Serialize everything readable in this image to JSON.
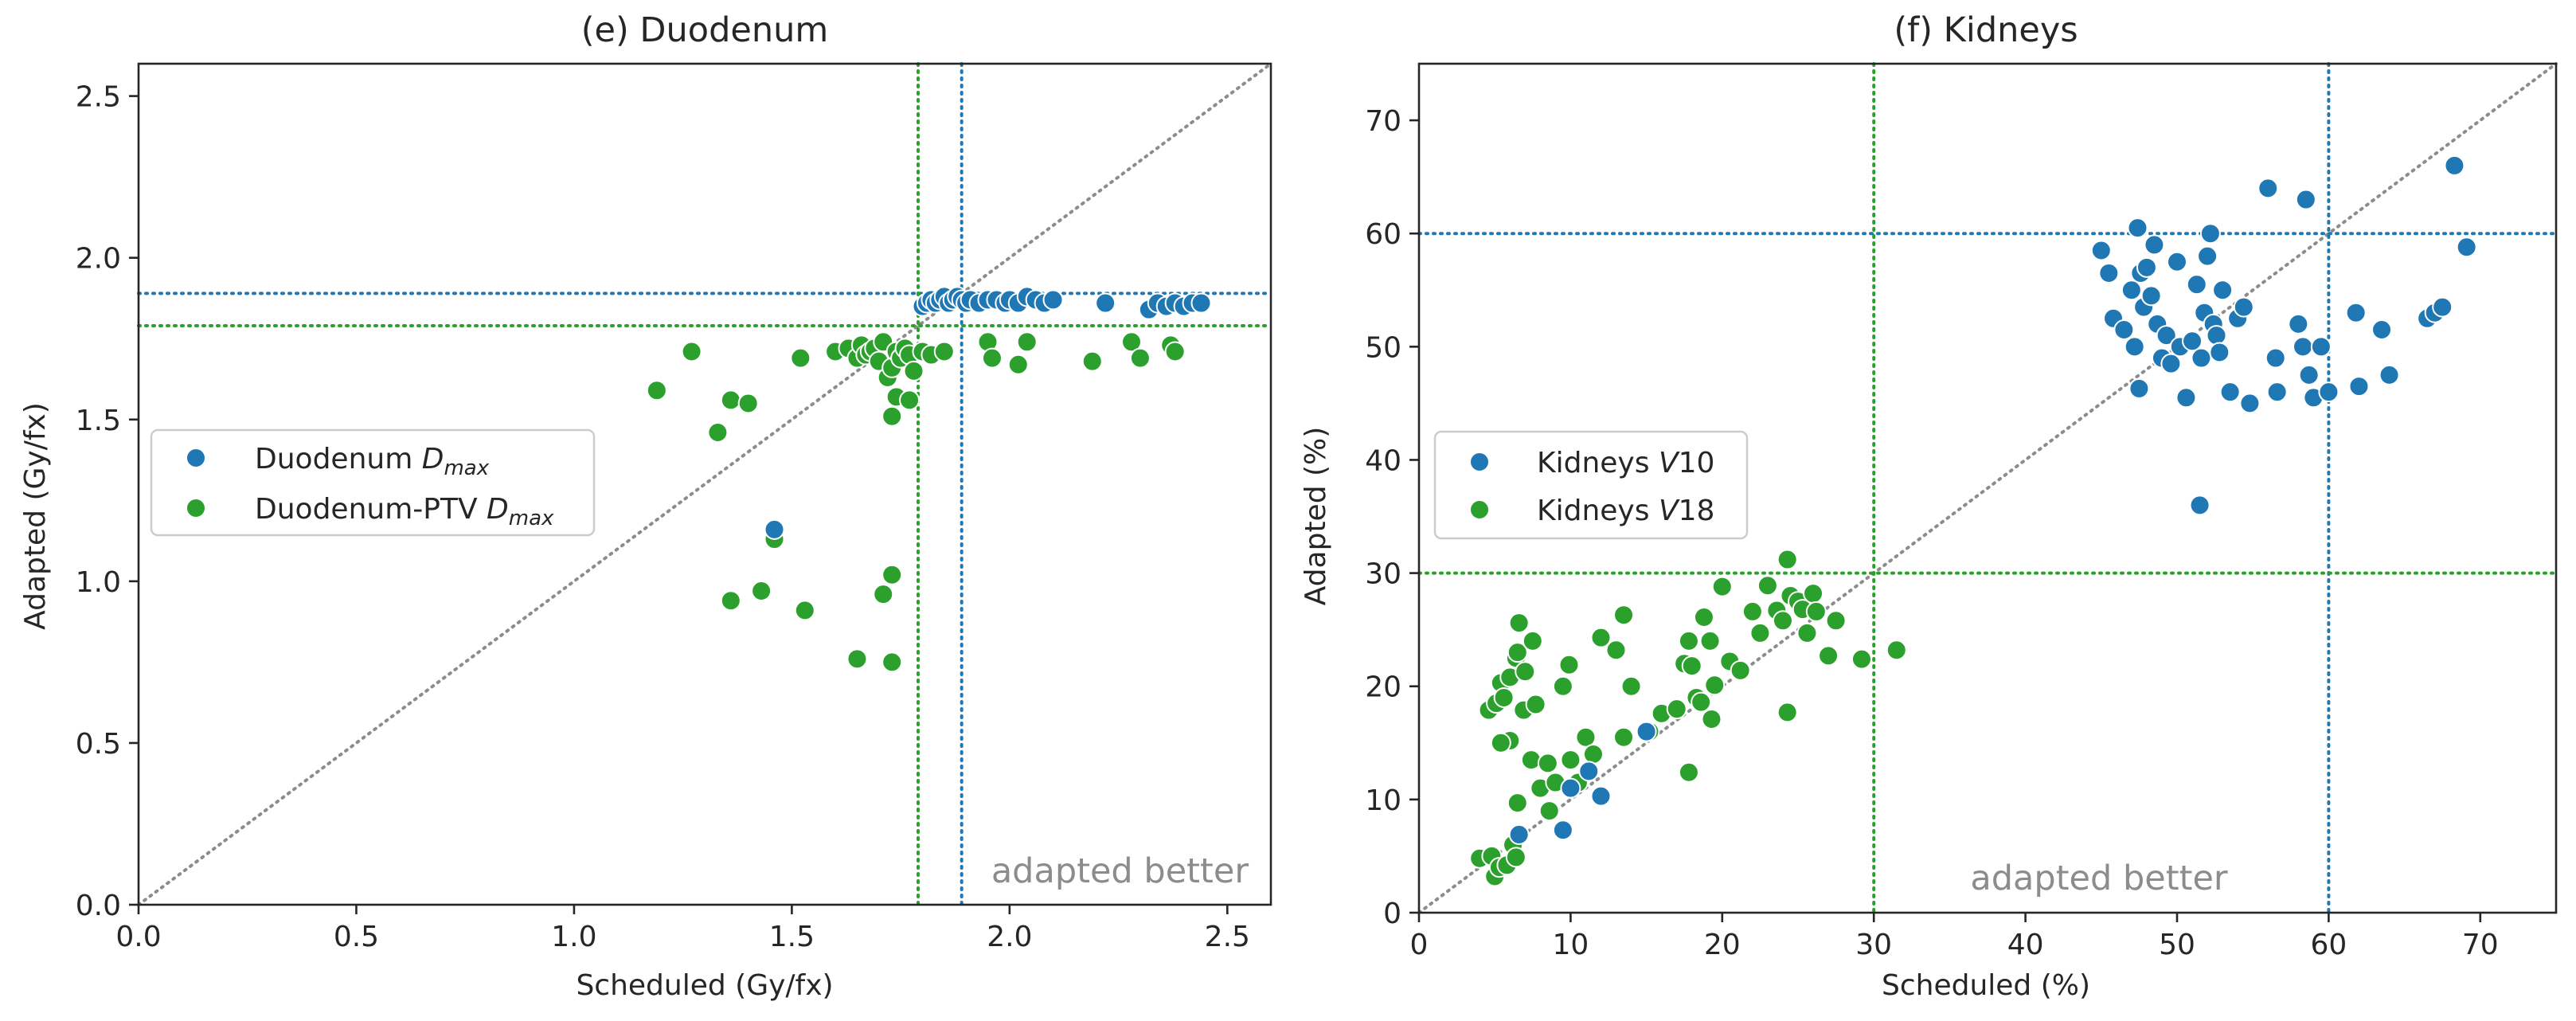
{
  "colors": {
    "blue": "#1f77b4",
    "green": "#2ca02c",
    "diag": "#8c8c8c",
    "annotation": "#8c8c8c"
  },
  "chart_data": [
    {
      "id": "duodenum",
      "type": "scatter",
      "title": "(e) Duodenum",
      "xlabel": "Scheduled (Gy/fx)",
      "ylabel": "Adapted (Gy/fx)",
      "xlim": [
        0,
        2.6
      ],
      "ylim": [
        0,
        2.6
      ],
      "xticks": [
        0.0,
        0.5,
        1.0,
        1.5,
        2.0,
        2.5
      ],
      "yticks": [
        0.0,
        0.5,
        1.0,
        1.5,
        2.0,
        2.5
      ],
      "xtick_labels": [
        "0.0",
        "0.5",
        "1.0",
        "1.5",
        "2.0",
        "2.5"
      ],
      "ytick_labels": [
        "0.0",
        "0.5",
        "1.0",
        "1.5",
        "2.0",
        "2.5"
      ],
      "annotation": "adapted better",
      "legend_position": "center-left",
      "diagonal": true,
      "series": [
        {
          "name": "Duodenum Dmax",
          "legend_base": "Duodenum ",
          "legend_symbol": "D",
          "legend_sub": "max",
          "color": "blue",
          "threshold": 1.89,
          "points": [
            [
              1.8,
              1.85
            ],
            [
              1.81,
              1.86
            ],
            [
              1.82,
              1.87
            ],
            [
              1.83,
              1.86
            ],
            [
              1.84,
              1.87
            ],
            [
              1.85,
              1.88
            ],
            [
              1.86,
              1.86
            ],
            [
              1.87,
              1.87
            ],
            [
              1.88,
              1.88
            ],
            [
              1.89,
              1.87
            ],
            [
              1.9,
              1.86
            ],
            [
              1.91,
              1.87
            ],
            [
              1.93,
              1.86
            ],
            [
              1.95,
              1.87
            ],
            [
              1.97,
              1.87
            ],
            [
              1.99,
              1.86
            ],
            [
              2.0,
              1.87
            ],
            [
              2.02,
              1.86
            ],
            [
              2.04,
              1.88
            ],
            [
              2.06,
              1.87
            ],
            [
              2.08,
              1.86
            ],
            [
              2.1,
              1.87
            ],
            [
              2.22,
              1.86
            ],
            [
              2.32,
              1.84
            ],
            [
              2.34,
              1.86
            ],
            [
              2.36,
              1.85
            ],
            [
              2.38,
              1.86
            ],
            [
              2.4,
              1.85
            ],
            [
              2.42,
              1.86
            ],
            [
              2.44,
              1.86
            ],
            [
              1.46,
              1.16
            ]
          ]
        },
        {
          "name": "Duodenum-PTV Dmax",
          "legend_base": "Duodenum-PTV ",
          "legend_symbol": "D",
          "legend_sub": "max",
          "color": "green",
          "threshold": 1.79,
          "points": [
            [
              1.19,
              1.59
            ],
            [
              1.27,
              1.71
            ],
            [
              1.33,
              1.46
            ],
            [
              1.36,
              1.56
            ],
            [
              1.4,
              1.55
            ],
            [
              1.52,
              1.69
            ],
            [
              1.6,
              1.71
            ],
            [
              1.63,
              1.72
            ],
            [
              1.65,
              1.69
            ],
            [
              1.66,
              1.73
            ],
            [
              1.67,
              1.7
            ],
            [
              1.68,
              1.71
            ],
            [
              1.69,
              1.72
            ],
            [
              1.7,
              1.68
            ],
            [
              1.71,
              1.74
            ],
            [
              1.72,
              1.63
            ],
            [
              1.73,
              1.66
            ],
            [
              1.74,
              1.71
            ],
            [
              1.75,
              1.69
            ],
            [
              1.76,
              1.72
            ],
            [
              1.77,
              1.7
            ],
            [
              1.78,
              1.65
            ],
            [
              1.74,
              1.57
            ],
            [
              1.77,
              1.56
            ],
            [
              1.73,
              1.51
            ],
            [
              1.8,
              1.71
            ],
            [
              1.82,
              1.7
            ],
            [
              1.85,
              1.71
            ],
            [
              1.95,
              1.74
            ],
            [
              1.96,
              1.69
            ],
            [
              2.02,
              1.67
            ],
            [
              2.04,
              1.74
            ],
            [
              2.19,
              1.68
            ],
            [
              2.28,
              1.74
            ],
            [
              2.3,
              1.69
            ],
            [
              2.37,
              1.73
            ],
            [
              2.38,
              1.71
            ],
            [
              1.46,
              1.13
            ],
            [
              1.36,
              0.94
            ],
            [
              1.43,
              0.97
            ],
            [
              1.53,
              0.91
            ],
            [
              1.71,
              0.96
            ],
            [
              1.73,
              1.02
            ],
            [
              1.65,
              0.76
            ],
            [
              1.73,
              0.75
            ]
          ]
        }
      ]
    },
    {
      "id": "kidneys",
      "type": "scatter",
      "title": "(f) Kidneys",
      "xlabel": "Scheduled (%)",
      "ylabel": "Adapted (%)",
      "xlim": [
        0,
        75
      ],
      "ylim": [
        0,
        75
      ],
      "xticks": [
        0,
        10,
        20,
        30,
        40,
        50,
        60,
        70
      ],
      "yticks": [
        0,
        10,
        20,
        30,
        40,
        50,
        60,
        70
      ],
      "xtick_labels": [
        "0",
        "10",
        "20",
        "30",
        "40",
        "50",
        "60",
        "70"
      ],
      "ytick_labels": [
        "0",
        "10",
        "20",
        "30",
        "40",
        "50",
        "60",
        "70"
      ],
      "annotation": "adapted better",
      "legend_position": "center-left",
      "diagonal": true,
      "series": [
        {
          "name": "Kidneys V10",
          "legend_base": "Kidneys ",
          "legend_symbol": "V",
          "legend_sub": "10",
          "color": "blue",
          "threshold": 60,
          "points": [
            [
              45.0,
              58.5
            ],
            [
              45.5,
              56.5
            ],
            [
              45.8,
              52.5
            ],
            [
              46.5,
              51.5
            ],
            [
              47.0,
              55.0
            ],
            [
              47.4,
              60.5
            ],
            [
              47.6,
              56.5
            ],
            [
              47.8,
              53.5
            ],
            [
              48.0,
              57.0
            ],
            [
              48.3,
              54.5
            ],
            [
              48.5,
              59.0
            ],
            [
              48.7,
              52.0
            ],
            [
              49.0,
              49.0
            ],
            [
              49.3,
              51.0
            ],
            [
              49.6,
              48.5
            ],
            [
              50.0,
              57.5
            ],
            [
              50.2,
              50.0
            ],
            [
              50.6,
              45.5
            ],
            [
              51.0,
              50.5
            ],
            [
              51.3,
              55.5
            ],
            [
              51.6,
              49.0
            ],
            [
              51.8,
              53.0
            ],
            [
              52.0,
              58.0
            ],
            [
              52.2,
              60.0
            ],
            [
              52.4,
              52.0
            ],
            [
              52.6,
              51.0
            ],
            [
              52.8,
              49.5
            ],
            [
              53.0,
              55.0
            ],
            [
              53.5,
              46.0
            ],
            [
              54.0,
              52.5
            ],
            [
              54.4,
              53.5
            ],
            [
              54.8,
              45.0
            ],
            [
              56.0,
              64.0
            ],
            [
              56.5,
              49.0
            ],
            [
              56.6,
              46.0
            ],
            [
              58.0,
              52.0
            ],
            [
              58.3,
              50.0
            ],
            [
              58.5,
              63.0
            ],
            [
              58.7,
              47.5
            ],
            [
              59.0,
              45.5
            ],
            [
              59.5,
              50.0
            ],
            [
              60.0,
              46.0
            ],
            [
              61.8,
              53.0
            ],
            [
              62.0,
              46.5
            ],
            [
              63.5,
              51.5
            ],
            [
              64.0,
              47.5
            ],
            [
              66.5,
              52.5
            ],
            [
              67.0,
              53.0
            ],
            [
              67.5,
              53.5
            ],
            [
              68.3,
              66.0
            ],
            [
              69.1,
              58.8
            ],
            [
              47.2,
              50.0
            ],
            [
              51.5,
              36.0
            ],
            [
              47.5,
              46.3
            ],
            [
              12.0,
              10.3
            ],
            [
              11.2,
              12.5
            ],
            [
              15.0,
              16.0
            ],
            [
              10.0,
              11.0
            ],
            [
              9.5,
              7.3
            ],
            [
              6.6,
              6.9
            ]
          ]
        },
        {
          "name": "Kidneys V18",
          "legend_base": "Kidneys ",
          "legend_symbol": "V",
          "legend_sub": "18",
          "color": "green",
          "threshold": 30,
          "points": [
            [
              4.0,
              4.8
            ],
            [
              4.8,
              5.0
            ],
            [
              5.0,
              3.2
            ],
            [
              5.3,
              4.0
            ],
            [
              5.8,
              4.2
            ],
            [
              6.2,
              6.0
            ],
            [
              6.4,
              4.9
            ],
            [
              4.6,
              17.9
            ],
            [
              5.1,
              18.5
            ],
            [
              5.4,
              20.3
            ],
            [
              5.6,
              19.0
            ],
            [
              6.0,
              20.8
            ],
            [
              6.4,
              22.5
            ],
            [
              6.5,
              23.0
            ],
            [
              6.6,
              25.6
            ],
            [
              6.9,
              17.9
            ],
            [
              7.0,
              21.3
            ],
            [
              7.4,
              13.5
            ],
            [
              7.5,
              24.0
            ],
            [
              7.7,
              18.4
            ],
            [
              6.0,
              15.2
            ],
            [
              5.4,
              15.0
            ],
            [
              6.5,
              9.7
            ],
            [
              8.0,
              11.0
            ],
            [
              8.5,
              13.2
            ],
            [
              8.6,
              9.0
            ],
            [
              9.0,
              11.5
            ],
            [
              9.5,
              20.0
            ],
            [
              9.9,
              21.9
            ],
            [
              10.0,
              13.5
            ],
            [
              10.5,
              11.5
            ],
            [
              11.0,
              15.5
            ],
            [
              11.5,
              14.0
            ],
            [
              12.0,
              24.3
            ],
            [
              13.0,
              23.2
            ],
            [
              13.5,
              26.3
            ],
            [
              14.0,
              20.0
            ],
            [
              13.5,
              15.5
            ],
            [
              15.2,
              16.0
            ],
            [
              16.0,
              17.6
            ],
            [
              17.0,
              18.0
            ],
            [
              17.5,
              22.0
            ],
            [
              17.8,
              24.0
            ],
            [
              17.8,
              12.4
            ],
            [
              18.0,
              21.8
            ],
            [
              18.3,
              19.0
            ],
            [
              18.6,
              18.6
            ],
            [
              18.8,
              26.1
            ],
            [
              19.2,
              24.0
            ],
            [
              19.3,
              17.1
            ],
            [
              19.5,
              20.1
            ],
            [
              20.0,
              28.8
            ],
            [
              20.5,
              22.2
            ],
            [
              21.2,
              21.4
            ],
            [
              22.0,
              26.6
            ],
            [
              22.5,
              24.7
            ],
            [
              23.0,
              28.9
            ],
            [
              23.6,
              26.7
            ],
            [
              24.0,
              25.8
            ],
            [
              24.3,
              31.2
            ],
            [
              24.5,
              28.0
            ],
            [
              25.0,
              27.5
            ],
            [
              25.3,
              26.8
            ],
            [
              25.6,
              24.7
            ],
            [
              26.0,
              28.2
            ],
            [
              26.2,
              26.6
            ],
            [
              27.0,
              22.7
            ],
            [
              27.5,
              25.8
            ],
            [
              29.2,
              22.4
            ],
            [
              31.5,
              23.2
            ],
            [
              24.3,
              17.7
            ]
          ]
        }
      ]
    }
  ]
}
